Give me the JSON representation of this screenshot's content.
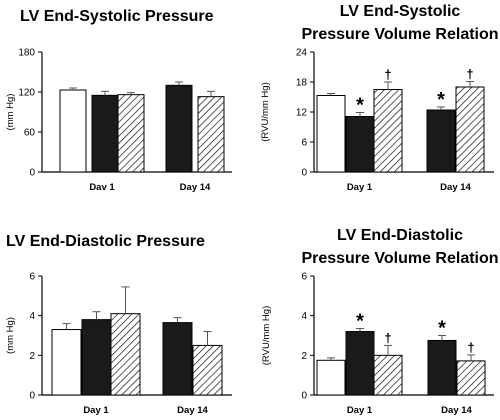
{
  "chart_data": [
    {
      "type": "bar",
      "title": [
        "LV End-Systolic Pressure"
      ],
      "ylabel": "(mm Hg)",
      "ylim": [
        0,
        180
      ],
      "yticks": [
        "0",
        "60",
        "120",
        "180"
      ],
      "categories": [
        "Dav 1",
        "Day 14"
      ],
      "groups": [
        [
          {
            "fill": "white",
            "value": 123,
            "err": 3
          },
          {
            "fill": "black",
            "value": 115,
            "err": 6
          },
          {
            "fill": "hatch",
            "value": 116,
            "err": 3
          }
        ],
        [
          {
            "fill": "black",
            "value": 130,
            "err": 5
          },
          {
            "fill": "hatch",
            "value": 113,
            "err": 8
          }
        ]
      ]
    },
    {
      "type": "bar",
      "title": [
        "LV End-Systolic",
        "Pressure Volume Relation"
      ],
      "ylabel": "(RVU/mm Hg)",
      "ylim": [
        0,
        24
      ],
      "yticks": [
        "0",
        "6",
        "12",
        "18",
        "24"
      ],
      "categories": [
        "Day 1",
        "Day 14"
      ],
      "groups": [
        [
          {
            "fill": "white",
            "value": 15.3,
            "err": 0.4
          },
          {
            "fill": "black",
            "value": 11.1,
            "err": 0.8,
            "mark": "*"
          },
          {
            "fill": "hatch",
            "value": 16.5,
            "err": 1.5,
            "mark": "†"
          }
        ],
        [
          {
            "fill": "black",
            "value": 12.4,
            "err": 0.6,
            "mark": "*"
          },
          {
            "fill": "hatch",
            "value": 17.0,
            "err": 1.1,
            "mark": "†"
          }
        ]
      ]
    },
    {
      "type": "bar",
      "title": [
        "LV End-Diastolic Pressure"
      ],
      "ylabel": "(mm Hg)",
      "ylim": [
        0,
        6
      ],
      "yticks": [
        "0",
        "2",
        "4",
        "6"
      ],
      "categories": [
        "Day 1",
        "Day 14"
      ],
      "groups": [
        [
          {
            "fill": "white",
            "value": 3.3,
            "err": 0.3
          },
          {
            "fill": "black",
            "value": 3.8,
            "err": 0.4
          },
          {
            "fill": "hatch",
            "value": 4.1,
            "err": 1.35
          }
        ],
        [
          {
            "fill": "black",
            "value": 3.65,
            "err": 0.25
          },
          {
            "fill": "hatch",
            "value": 2.5,
            "err": 0.7
          }
        ]
      ]
    },
    {
      "type": "bar",
      "title": [
        "LV End-Diastolic",
        "Pressure Volume Relation"
      ],
      "ylabel": "(RVU/mm Hg)",
      "ylim": [
        0,
        6
      ],
      "yticks": [
        "0",
        "2",
        "4",
        "6"
      ],
      "categories": [
        "Day 1",
        "Day 14"
      ],
      "groups": [
        [
          {
            "fill": "white",
            "value": 1.75,
            "err": 0.12
          },
          {
            "fill": "black",
            "value": 3.2,
            "err": 0.15,
            "mark": "*"
          },
          {
            "fill": "hatch",
            "value": 2.0,
            "err": 0.5,
            "mark": "†"
          }
        ],
        [
          {
            "fill": "black",
            "value": 2.75,
            "err": 0.25,
            "mark": "*"
          },
          {
            "fill": "hatch",
            "value": 1.72,
            "err": 0.3,
            "mark": "†"
          }
        ]
      ]
    }
  ]
}
